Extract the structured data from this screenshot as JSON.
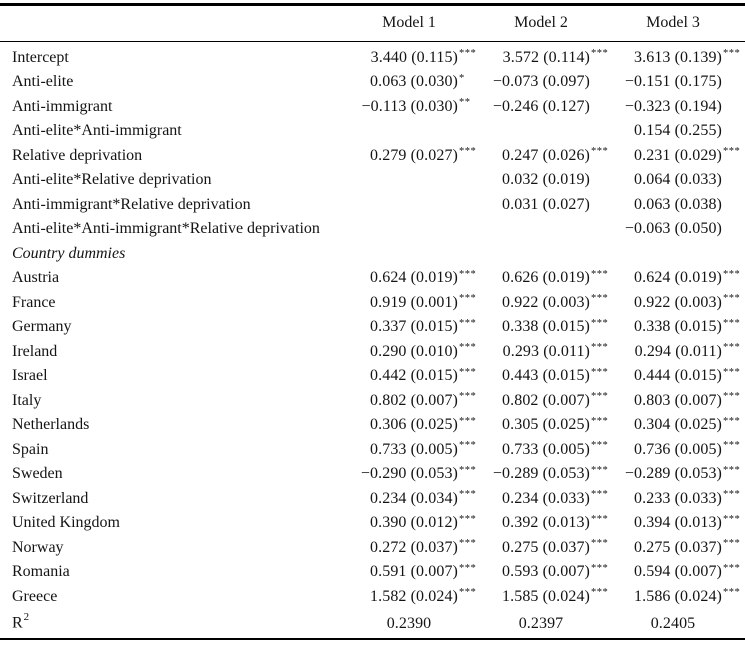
{
  "table": {
    "columns": [
      "Model 1",
      "Model 2",
      "Model 3"
    ],
    "rows": [
      {
        "type": "data",
        "label": "Intercept",
        "cells": [
          {
            "v": "3.440 (0.115)",
            "s": "***"
          },
          {
            "v": "3.572 (0.114)",
            "s": "***"
          },
          {
            "v": "3.613 (0.139)",
            "s": "***"
          }
        ]
      },
      {
        "type": "data",
        "label": "Anti-elite",
        "cells": [
          {
            "v": "0.063 (0.030)",
            "s": "*"
          },
          {
            "v": "−0.073 (0.097)",
            "s": ""
          },
          {
            "v": "−0.151 (0.175)",
            "s": ""
          }
        ]
      },
      {
        "type": "data",
        "label": "Anti-immigrant",
        "cells": [
          {
            "v": "−0.113 (0.030)",
            "s": "**"
          },
          {
            "v": "−0.246 (0.127)",
            "s": ""
          },
          {
            "v": "−0.323 (0.194)",
            "s": ""
          }
        ]
      },
      {
        "type": "data",
        "label": "Anti-elite*Anti-immigrant",
        "cells": [
          {
            "v": "",
            "s": ""
          },
          {
            "v": "",
            "s": ""
          },
          {
            "v": "0.154 (0.255)",
            "s": ""
          }
        ]
      },
      {
        "type": "data",
        "label": "Relative deprivation",
        "cells": [
          {
            "v": "0.279 (0.027)",
            "s": "***"
          },
          {
            "v": "0.247 (0.026)",
            "s": "***"
          },
          {
            "v": "0.231 (0.029)",
            "s": "***"
          }
        ]
      },
      {
        "type": "data",
        "label": "Anti-elite*Relative deprivation",
        "cells": [
          {
            "v": "",
            "s": ""
          },
          {
            "v": "0.032 (0.019)",
            "s": ""
          },
          {
            "v": "0.064 (0.033)",
            "s": ""
          }
        ]
      },
      {
        "type": "data",
        "label": "Anti-immigrant*Relative deprivation",
        "cells": [
          {
            "v": "",
            "s": ""
          },
          {
            "v": "0.031 (0.027)",
            "s": ""
          },
          {
            "v": "0.063 (0.038)",
            "s": ""
          }
        ]
      },
      {
        "type": "data",
        "label": "Anti-elite*Anti-immigrant*Relative deprivation",
        "cells": [
          {
            "v": "",
            "s": ""
          },
          {
            "v": "",
            "s": ""
          },
          {
            "v": "−0.063 (0.050)",
            "s": ""
          }
        ]
      },
      {
        "type": "section",
        "label": "Country dummies",
        "cells": [
          {
            "v": "",
            "s": ""
          },
          {
            "v": "",
            "s": ""
          },
          {
            "v": "",
            "s": ""
          }
        ]
      },
      {
        "type": "data",
        "label": "Austria",
        "cells": [
          {
            "v": "0.624 (0.019)",
            "s": "***"
          },
          {
            "v": "0.626 (0.019)",
            "s": "***"
          },
          {
            "v": "0.624 (0.019)",
            "s": "***"
          }
        ]
      },
      {
        "type": "data",
        "label": "France",
        "cells": [
          {
            "v": "0.919 (0.001)",
            "s": "***"
          },
          {
            "v": "0.922 (0.003)",
            "s": "***"
          },
          {
            "v": "0.922 (0.003)",
            "s": "***"
          }
        ]
      },
      {
        "type": "data",
        "label": "Germany",
        "cells": [
          {
            "v": "0.337 (0.015)",
            "s": "***"
          },
          {
            "v": "0.338 (0.015)",
            "s": "***"
          },
          {
            "v": "0.338 (0.015)",
            "s": "***"
          }
        ]
      },
      {
        "type": "data",
        "label": "Ireland",
        "cells": [
          {
            "v": "0.290 (0.010)",
            "s": "***"
          },
          {
            "v": "0.293 (0.011)",
            "s": "***"
          },
          {
            "v": "0.294 (0.011)",
            "s": "***"
          }
        ]
      },
      {
        "type": "data",
        "label": "Israel",
        "cells": [
          {
            "v": "0.442 (0.015)",
            "s": "***"
          },
          {
            "v": "0.443 (0.015)",
            "s": "***"
          },
          {
            "v": "0.444 (0.015)",
            "s": "***"
          }
        ]
      },
      {
        "type": "data",
        "label": "Italy",
        "cells": [
          {
            "v": "0.802 (0.007)",
            "s": "***"
          },
          {
            "v": "0.802 (0.007)",
            "s": "***"
          },
          {
            "v": "0.803 (0.007)",
            "s": "***"
          }
        ]
      },
      {
        "type": "data",
        "label": "Netherlands",
        "cells": [
          {
            "v": "0.306 (0.025)",
            "s": "***"
          },
          {
            "v": "0.305 (0.025)",
            "s": "***"
          },
          {
            "v": "0.304 (0.025)",
            "s": "***"
          }
        ]
      },
      {
        "type": "data",
        "label": "Spain",
        "cells": [
          {
            "v": "0.733 (0.005)",
            "s": "***"
          },
          {
            "v": "0.733 (0.005)",
            "s": "***"
          },
          {
            "v": "0.736 (0.005)",
            "s": "***"
          }
        ]
      },
      {
        "type": "data",
        "label": "Sweden",
        "cells": [
          {
            "v": "−0.290 (0.053)",
            "s": "***"
          },
          {
            "v": "−0.289 (0.053)",
            "s": "***"
          },
          {
            "v": "−0.289 (0.053)",
            "s": "***"
          }
        ]
      },
      {
        "type": "data",
        "label": "Switzerland",
        "cells": [
          {
            "v": "0.234 (0.034)",
            "s": "***"
          },
          {
            "v": "0.234 (0.033)",
            "s": "***"
          },
          {
            "v": "0.233 (0.033)",
            "s": "***"
          }
        ]
      },
      {
        "type": "data",
        "label": "United Kingdom",
        "cells": [
          {
            "v": "0.390 (0.012)",
            "s": "***"
          },
          {
            "v": "0.392 (0.013)",
            "s": "***"
          },
          {
            "v": "0.394 (0.013)",
            "s": "***"
          }
        ]
      },
      {
        "type": "data",
        "label": "Norway",
        "cells": [
          {
            "v": "0.272 (0.037)",
            "s": "***"
          },
          {
            "v": "0.275 (0.037)",
            "s": "***"
          },
          {
            "v": "0.275 (0.037)",
            "s": "***"
          }
        ]
      },
      {
        "type": "data",
        "label": "Romania",
        "cells": [
          {
            "v": "0.591 (0.007)",
            "s": "***"
          },
          {
            "v": "0.593 (0.007)",
            "s": "***"
          },
          {
            "v": "0.594 (0.007)",
            "s": "***"
          }
        ]
      },
      {
        "type": "data",
        "label": "Greece",
        "cells": [
          {
            "v": "1.582 (0.024)",
            "s": "***"
          },
          {
            "v": "1.585 (0.024)",
            "s": "***"
          },
          {
            "v": "1.586 (0.024)",
            "s": "***"
          }
        ]
      },
      {
        "type": "r2",
        "label": "R",
        "label_sup": "2",
        "cells": [
          {
            "v": "0.2390",
            "s": ""
          },
          {
            "v": "0.2397",
            "s": ""
          },
          {
            "v": "0.2405",
            "s": ""
          }
        ]
      }
    ]
  }
}
